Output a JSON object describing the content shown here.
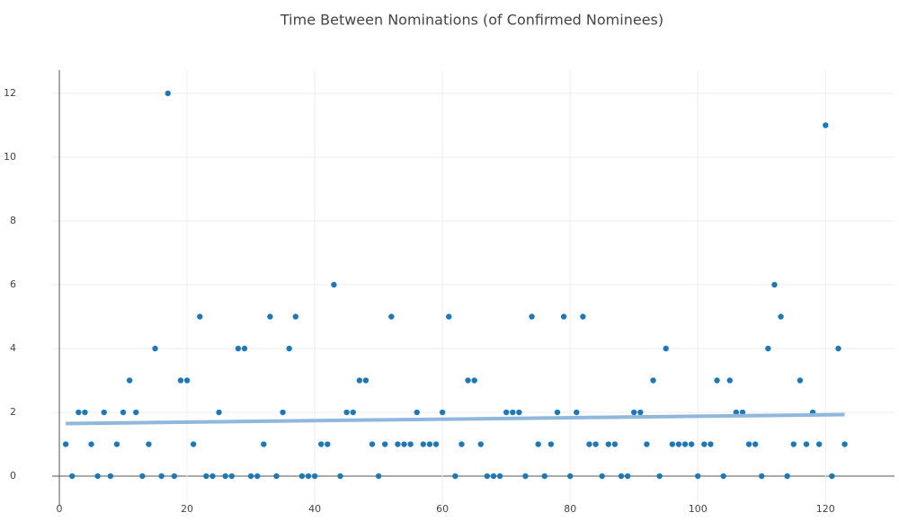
{
  "chart_data": {
    "type": "scatter",
    "title": "Time Between Nominations (of Confirmed Nominees)",
    "xlim": [
      -1.13,
      130.8
    ],
    "ylim": [
      -0.9,
      12.73
    ],
    "xticks": [
      0,
      20,
      40,
      60,
      80,
      100,
      120
    ],
    "yticks": [
      0,
      2,
      4,
      6,
      8,
      10,
      12
    ],
    "grid": true,
    "series": [
      {
        "color": "#1f77b4",
        "x": [
          1,
          2,
          3,
          4,
          5,
          6,
          7,
          8,
          9,
          10,
          11,
          12,
          13,
          14,
          15,
          16,
          17,
          18,
          19,
          20,
          21,
          22,
          23,
          24,
          25,
          26,
          27,
          28,
          29,
          30,
          31,
          32,
          33,
          34,
          35,
          36,
          37,
          38,
          39,
          40,
          41,
          42,
          43,
          44,
          45,
          46,
          47,
          48,
          49,
          50,
          51,
          52,
          53,
          54,
          55,
          56,
          57,
          58,
          59,
          60,
          61,
          62,
          63,
          64,
          65,
          66,
          67,
          68,
          69,
          70,
          71,
          72,
          73,
          74,
          75,
          76,
          77,
          78,
          79,
          80,
          81,
          82,
          83,
          84,
          85,
          86,
          87,
          88,
          89,
          90,
          91,
          92,
          93,
          94,
          95,
          96,
          97,
          98,
          99,
          100,
          101,
          102,
          103,
          104,
          105,
          106,
          107,
          108,
          109,
          110,
          111,
          112,
          113,
          114,
          115,
          116,
          117,
          118,
          119,
          120,
          121,
          122,
          123
        ],
        "values": [
          1,
          0,
          2,
          2,
          1,
          0,
          2,
          0,
          1,
          2,
          3,
          2,
          0,
          1,
          4,
          0,
          12,
          0,
          3,
          3,
          1,
          5,
          0,
          0,
          2,
          0,
          0,
          4,
          4,
          0,
          0,
          1,
          5,
          0,
          2,
          4,
          5,
          0,
          0,
          0,
          1,
          1,
          6,
          0,
          2,
          2,
          3,
          3,
          1,
          0,
          1,
          5,
          1,
          1,
          1,
          2,
          1,
          1,
          1,
          2,
          5,
          0,
          1,
          3,
          3,
          1,
          0,
          0,
          0,
          2,
          2,
          2,
          0,
          5,
          1,
          0,
          1,
          2,
          5,
          0,
          2,
          5,
          1,
          1,
          0,
          1,
          1,
          0,
          0,
          2,
          2,
          1,
          3,
          0,
          4,
          1,
          1,
          1,
          1,
          0,
          1,
          1,
          3,
          0,
          3,
          2,
          2,
          1,
          1,
          0,
          4,
          6,
          5,
          0,
          1,
          3,
          1,
          2,
          1,
          11,
          0,
          4,
          1
        ]
      },
      {
        "type": "line",
        "color": "#8fb8dc",
        "x": [
          1,
          123
        ],
        "values": [
          1.65,
          1.93
        ]
      }
    ]
  }
}
